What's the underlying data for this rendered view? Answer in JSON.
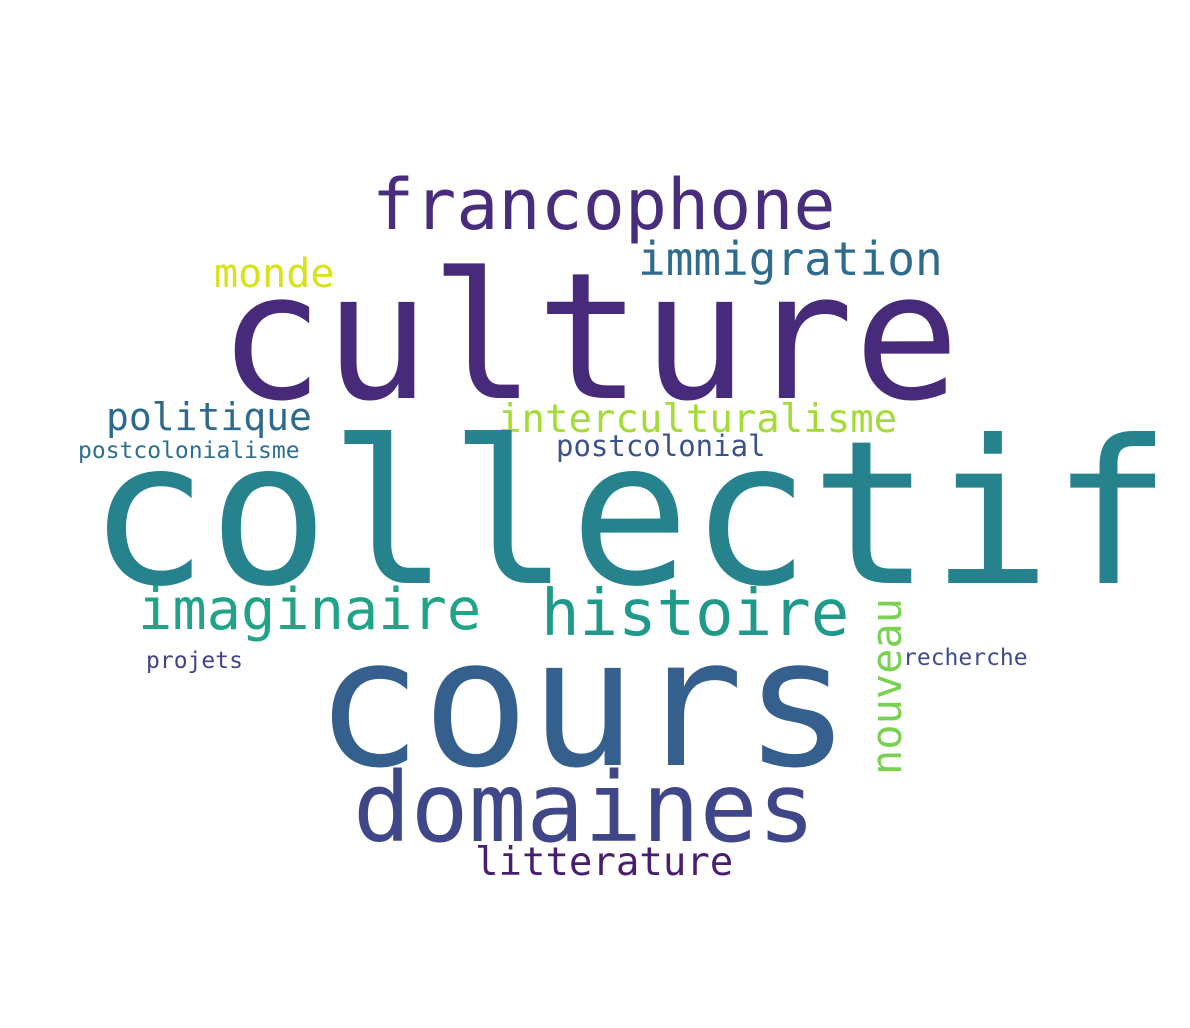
{
  "words": {
    "culture": {
      "text": "culture",
      "color": "#472a7a"
    },
    "collectif": {
      "text": "collectif",
      "color": "#26838e"
    },
    "cours": {
      "text": "cours",
      "color": "#355f8d"
    },
    "francophone": {
      "text": "francophone",
      "color": "#472d7b"
    },
    "immigration": {
      "text": "immigration",
      "color": "#2f6b8e"
    },
    "monde": {
      "text": "monde",
      "color": "#d8e219"
    },
    "politique": {
      "text": "politique",
      "color": "#2e6a8d"
    },
    "interculturalisme": {
      "text": "interculturalisme",
      "color": "#a5db36"
    },
    "postcolonialisme": {
      "text": "postcolonialisme",
      "color": "#2d6f8e"
    },
    "postcolonial": {
      "text": "postcolonial",
      "color": "#3b528b"
    },
    "imaginaire": {
      "text": "imaginaire",
      "color": "#20a386"
    },
    "histoire": {
      "text": "histoire",
      "color": "#1f9a8a"
    },
    "nouveau": {
      "text": "nouveau",
      "color": "#7ad151"
    },
    "projets": {
      "text": "projets",
      "color": "#414487"
    },
    "recherche": {
      "text": "recherche",
      "color": "#3e4c8a"
    },
    "domaines": {
      "text": "domaines",
      "color": "#3f4788"
    },
    "litterature": {
      "text": "litterature",
      "color": "#481f70"
    }
  }
}
